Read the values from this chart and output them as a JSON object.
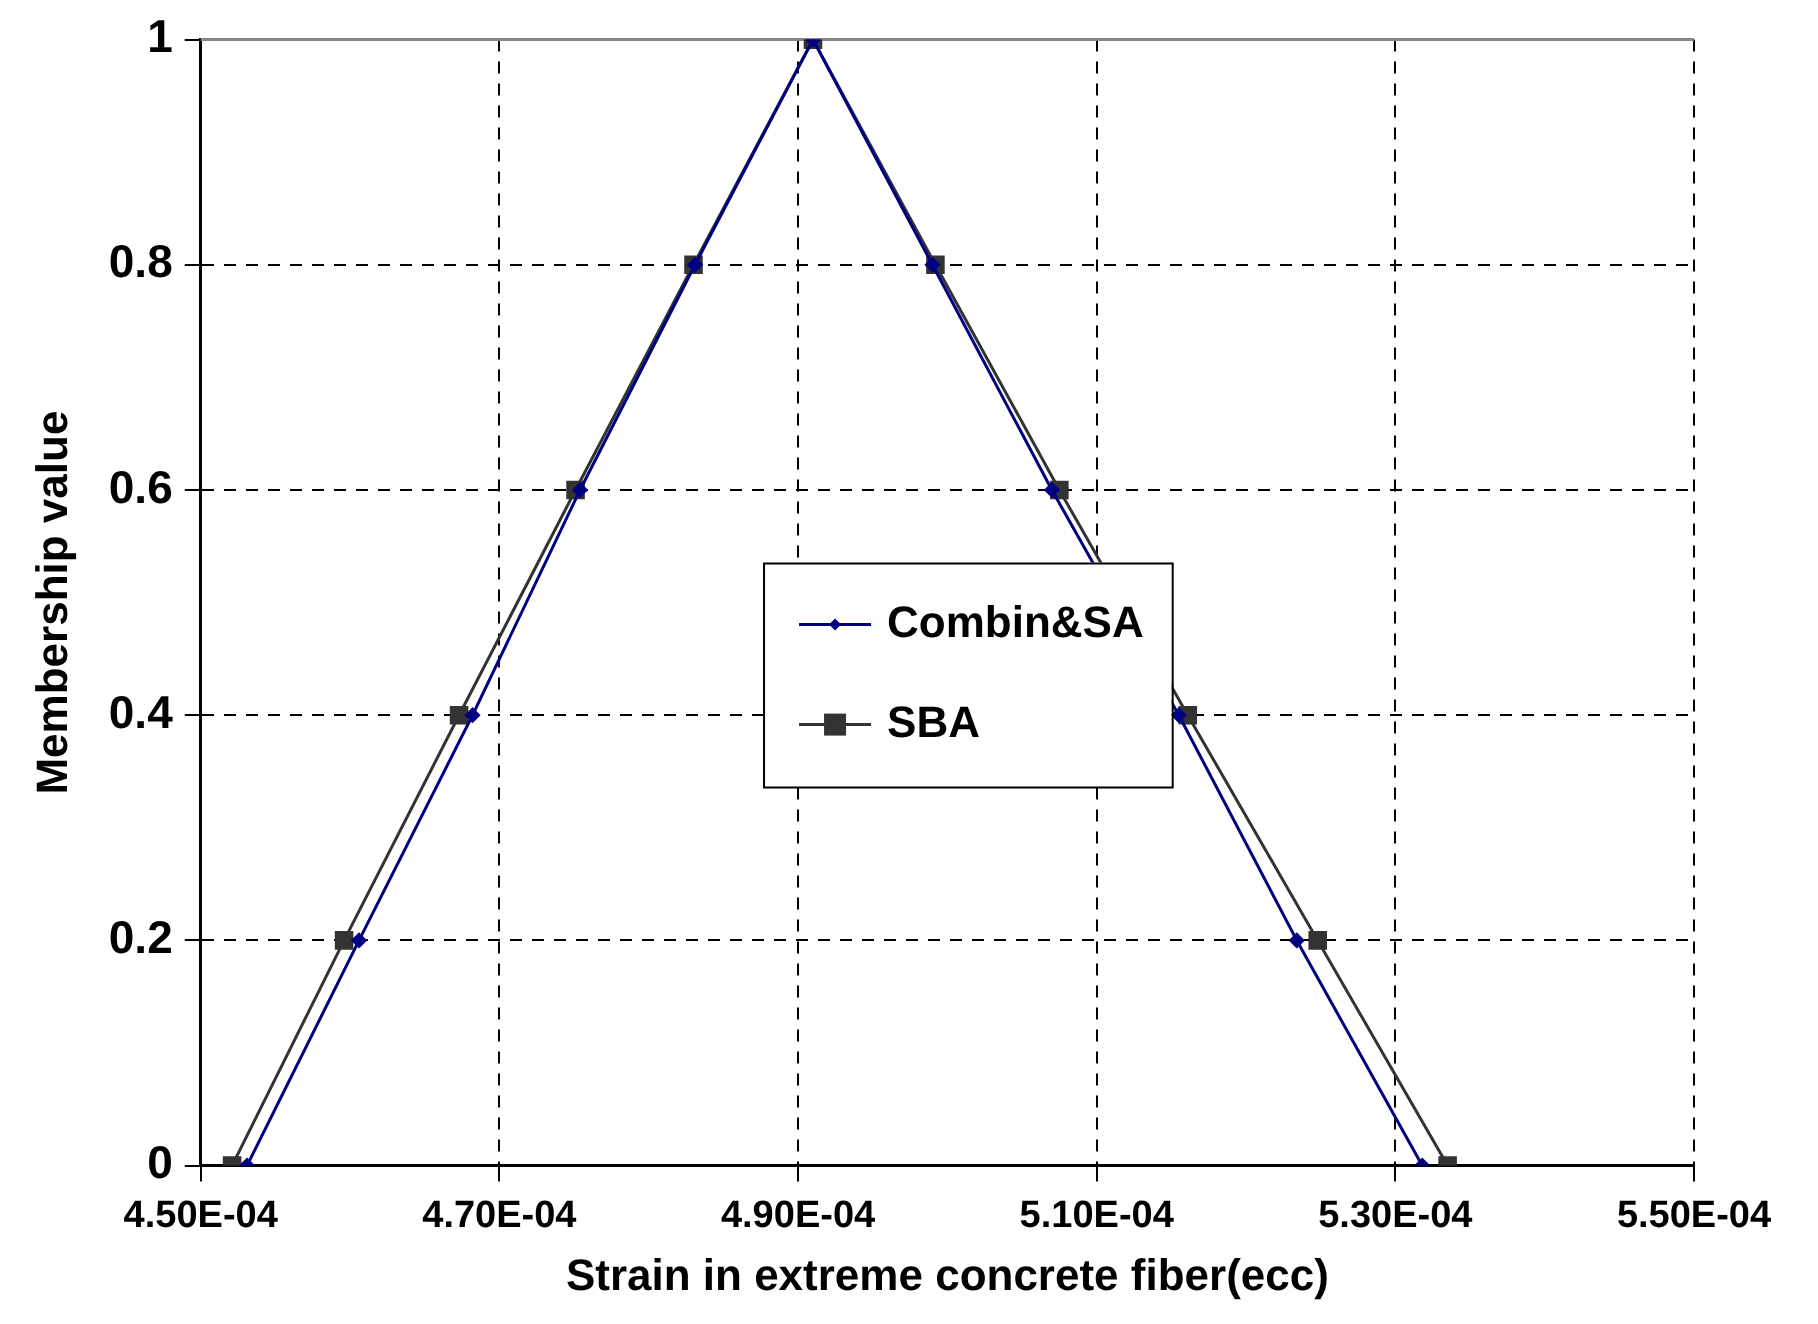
{
  "chart_data": {
    "type": "line",
    "xlabel": "Strain in extreme concrete fiber(ecc)",
    "ylabel": "Membership value",
    "series": [
      {
        "name": "Combin&SA",
        "color": "#000080",
        "marker": "diamond",
        "x": [
          0.0004531,
          0.0004606,
          0.0004682,
          0.0004754,
          0.0004831,
          0.000491,
          0.000499,
          0.000507,
          0.0005155,
          0.0005234,
          0.0005318
        ],
        "values": [
          0,
          0.2,
          0.4,
          0.6,
          0.8,
          1,
          0.8,
          0.6,
          0.4,
          0.2,
          0
        ]
      },
      {
        "name": "SBA",
        "color": "#333333",
        "marker": "square",
        "x": [
          0.0004521,
          0.0004596,
          0.0004673,
          0.0004751,
          0.000483,
          0.000491,
          0.0004992,
          0.0005075,
          0.0005161,
          0.0005248,
          0.0005335
        ],
        "values": [
          0,
          0.2,
          0.4,
          0.6,
          0.8,
          1,
          0.8,
          0.6,
          0.4,
          0.2,
          0
        ]
      }
    ],
    "xlim": [
      0.00045,
      0.00055
    ],
    "xticks": [
      {
        "value": 0.00045,
        "label": "4.50E-04"
      },
      {
        "value": 0.00047,
        "label": "4.70E-04"
      },
      {
        "value": 0.00049,
        "label": "4.90E-04"
      },
      {
        "value": 0.00051,
        "label": "5.10E-04"
      },
      {
        "value": 0.00053,
        "label": "5.30E-04"
      },
      {
        "value": 0.00055,
        "label": "5.50E-04"
      }
    ],
    "ylim": [
      0,
      1
    ],
    "yticks": [
      0,
      0.2,
      0.4,
      0.6,
      0.8,
      1
    ],
    "grid": true,
    "legend": "center",
    "line_style": "solid"
  }
}
